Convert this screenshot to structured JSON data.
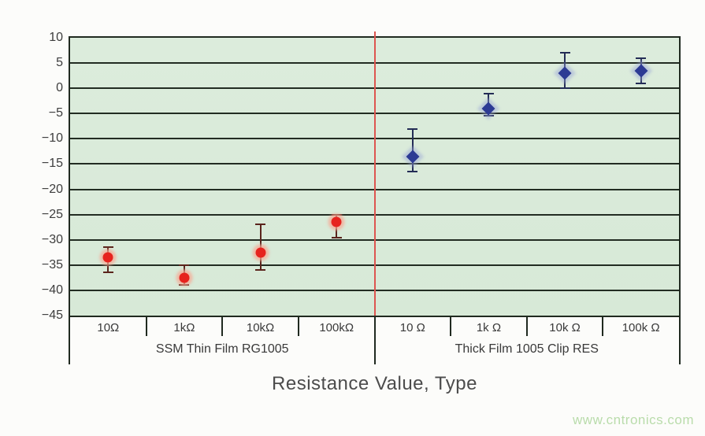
{
  "watermark": "www.cntronics.com",
  "chart_data": {
    "type": "scatter",
    "title": "",
    "xlabel": "Resistance Value, Type",
    "ylabel": "",
    "ylim": [
      -45,
      10
    ],
    "grid": true,
    "legend": "none",
    "yticks": [
      10,
      5,
      0,
      -5,
      -10,
      -15,
      -20,
      -25,
      -30,
      -35,
      -40,
      -45
    ],
    "ytick_labels": [
      "10",
      "5",
      "0",
      "−5",
      "−10",
      "−15",
      "−20",
      "−25",
      "−30",
      "−35",
      "−40",
      "−45"
    ],
    "groups": [
      {
        "label": "SSM Thin Film RG1005",
        "categories": [
          "10Ω",
          "1kΩ",
          "10kΩ",
          "100kΩ"
        ]
      },
      {
        "label": "Thick Film 1005 Clip RES",
        "categories": [
          "10 Ω",
          "1k Ω",
          "10k Ω",
          "100k Ω"
        ]
      }
    ],
    "series": [
      {
        "name": "SSM Thin Film RG1005",
        "marker": "circle",
        "color": "#e6231e",
        "halo": "rgba(246,170,150,0.75)",
        "error_color": "#5a241c",
        "points": [
          {
            "slot": 0,
            "y": -33.5,
            "hi": -31.5,
            "lo": -36.5
          },
          {
            "slot": 1,
            "y": -37.5,
            "hi": -35,
            "lo": -39
          },
          {
            "slot": 2,
            "y": -32.5,
            "hi": -27,
            "lo": -36
          },
          {
            "slot": 3,
            "y": -26.5,
            "hi": -25,
            "lo": -29.5
          }
        ]
      },
      {
        "name": "Thick Film 1005 Clip RES",
        "marker": "diamond",
        "color": "#2c3a94",
        "halo": "rgba(150,162,215,0.45)",
        "error_color": "#232c55",
        "points": [
          {
            "slot": 4,
            "y": -13.5,
            "hi": -8,
            "lo": -16.5
          },
          {
            "slot": 5,
            "y": -4,
            "hi": -1,
            "lo": -5.5
          },
          {
            "slot": 6,
            "y": 3,
            "hi": 7,
            "lo": 0
          },
          {
            "slot": 7,
            "y": 3.5,
            "hi": 6,
            "lo": 1
          }
        ]
      }
    ],
    "divider_slot": 4,
    "colors": {
      "plot_bg": "#d9ead9",
      "grid": "#222c22",
      "divider": "#dd5550",
      "tick_text": "#3d3d3d",
      "axis_title_text": "#4c4c4c",
      "watermark_text": "#b9dcab"
    }
  }
}
